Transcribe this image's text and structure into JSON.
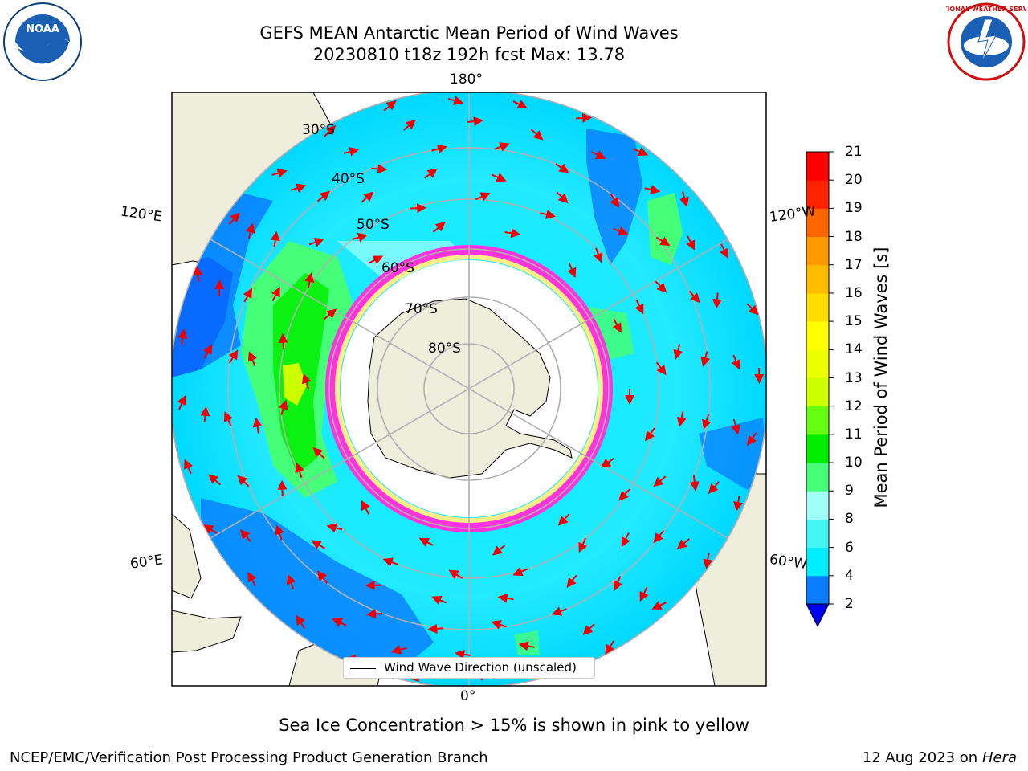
{
  "header": {
    "title_line1": "GEFS MEAN Antarctic Mean Period of Wind Waves",
    "title_line2": "20230810 t18z 192h fcst   Max: 13.78"
  },
  "map": {
    "lon_labels": {
      "top": "180°",
      "bottom": "0°",
      "left_upper": "120°E",
      "left_lower": "60°E",
      "right_upper": "120°W",
      "right_lower": "60°W"
    },
    "lat_labels": [
      "30°S",
      "40°S",
      "50°S",
      "60°S",
      "70°S",
      "80°S"
    ],
    "legend_label": "Wind Wave Direction (unscaled)",
    "colors": {
      "land": "#efeedc",
      "ice_edge": "#ff33dd",
      "ice_inner": "#ffee88",
      "arrow": "#ee0000",
      "graticule": "#b0b0b0"
    }
  },
  "colorbar": {
    "label": "Mean Period of Wind Waves [s]",
    "ticks": [
      "2",
      "4",
      "6",
      "8",
      "9",
      "10",
      "11",
      "12",
      "13",
      "14",
      "15",
      "16",
      "17",
      "18",
      "19",
      "20",
      "21"
    ],
    "colors": [
      "#0000ff",
      "#0a7cff",
      "#00eeff",
      "#44f5f5",
      "#a0fff8",
      "#44ff77",
      "#00ee00",
      "#66ff11",
      "#ccff00",
      "#eeff00",
      "#ffff00",
      "#ffdd00",
      "#ffbb00",
      "#ff9900",
      "#ff6600",
      "#ff2200",
      "#ff0000"
    ],
    "extend_color": "#0000ee"
  },
  "subtitle": "Sea Ice Concentration > 15% is shown in pink to yellow",
  "footer": {
    "left": "NCEP/EMC/Verification Post Processing Product Generation Branch",
    "right_date": "12 Aug 2023 on",
    "right_host": "Hera"
  },
  "logos": {
    "noaa": "NOAA",
    "nws": "NATIONAL WEATHER SERVICE"
  }
}
